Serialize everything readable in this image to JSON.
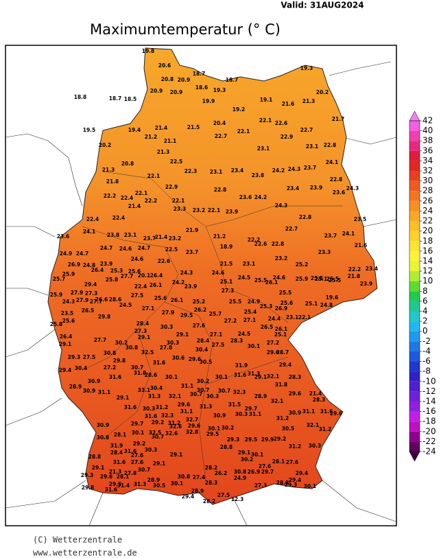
{
  "header": {
    "valid": "Valid:  31AUG2024",
    "title": "Maximumtemperatur (° C)"
  },
  "footer": {
    "copyright": "(C) Wetterzentrale",
    "url": "www.wetterzentrale.de"
  },
  "colorbar": {
    "ticks": [
      42,
      40,
      38,
      36,
      34,
      32,
      30,
      28,
      26,
      24,
      22,
      20,
      18,
      16,
      14,
      12,
      10,
      8,
      6,
      4,
      2,
      0,
      -2,
      -4,
      -6,
      -8,
      -10,
      -12,
      -14,
      -16,
      -18,
      -20,
      -22,
      -24
    ],
    "colors": [
      "#f080f0",
      "#f060e0",
      "#f040b0",
      "#e82880",
      "#e01c3c",
      "#e02820",
      "#e8401e",
      "#ee5c20",
      "#f27622",
      "#f69024",
      "#f8a826",
      "#fabe28",
      "#fcd22c",
      "#fee432",
      "#fef436",
      "#e8f434",
      "#b0ec30",
      "#60dc30",
      "#20cc50",
      "#20c890",
      "#20c8c8",
      "#20b8f0",
      "#2098f0",
      "#2078e8",
      "#2058e0",
      "#2038d0",
      "#3020c8",
      "#5020d0",
      "#7020d8",
      "#9020e0",
      "#c020e8",
      "#c010c0",
      "#900090",
      "#600060",
      "#400040"
    ]
  },
  "stations": [
    19.8,
    20.6,
    18.7,
    20.8,
    20.9,
    18.6,
    19.3,
    18.7,
    18.8,
    18.7,
    18.5,
    20.9,
    20.9,
    19.9,
    19.2,
    19.1,
    21.6,
    21.3,
    20.2,
    19.3,
    21.7,
    19.5,
    19.4,
    21.4,
    21.5,
    20.4,
    22.1,
    22.1,
    22.6,
    22.7,
    20.2,
    21.2,
    21.1,
    22.7,
    23.1,
    22.9,
    23.1,
    22.8,
    21.3,
    20.8,
    21.3,
    22.5,
    22.3,
    23.1,
    23.4,
    23.8,
    24.2,
    24.3,
    23.7,
    24.1,
    21.8,
    22.1,
    22.9,
    22.8,
    23.6,
    24.2,
    23.4,
    23.9,
    22.8,
    24.3,
    22.2,
    22.4,
    22.1,
    22.2,
    22.1,
    23.6,
    22.4,
    22.4,
    21.4,
    23.3,
    23.2,
    22.1,
    23.9,
    24.3,
    22.8,
    23.5,
    23.6,
    24.1,
    23.8,
    23.1,
    23.7,
    21.4,
    23.2,
    21.9,
    21.2,
    22.2,
    22.8,
    22.7,
    23.7,
    24.1,
    24.9,
    24.7,
    24.7,
    24.6,
    24.7,
    22.5,
    23.7,
    18.9,
    22.6,
    23.2,
    23.3,
    21.6,
    26.9,
    24.8,
    23.9,
    24.6,
    22.6,
    21.5,
    23.1,
    25.2,
    22.2,
    23.4,
    25.9,
    26.4,
    25.3,
    25.6,
    26.4,
    24.3,
    24.6,
    24.5,
    25.5,
    24.6,
    25.1,
    25.5,
    21.8,
    25.7,
    29.4,
    25.8,
    27.7,
    20.1,
    24.2,
    25.1,
    26.1,
    25.9,
    25.5,
    25.5,
    23.9,
    25.9,
    27.9,
    27.3,
    26.6,
    28.6,
    22.4,
    26.1,
    23.9,
    27.3,
    25.5,
    19.6,
    24.3,
    27.9,
    27.7,
    27.5,
    25.6,
    26.1,
    25.2,
    25.5,
    24.9,
    25.3,
    25.6,
    25.1,
    24.8,
    23.5,
    26.5,
    29.8,
    24.5,
    27.1,
    27.9,
    26.2,
    25.7,
    25.4,
    26.9,
    25.6,
    28.4,
    29.5,
    27.2,
    27.1,
    24.4,
    23.1,
    22.1,
    25.8,
    30.3,
    27.6,
    26.5,
    26.1,
    27.3,
    29.1,
    27.1,
    24.5,
    26.4,
    27.7,
    30.2,
    29.1,
    30.3,
    28.4,
    27.5,
    28.3,
    27.2,
    25.1,
    29.1,
    30.8,
    30.8,
    27.8,
    30.4,
    30.1,
    29.6,
    28.7,
    29.3,
    27.5,
    29.8,
    32.5,
    30.6,
    29.6,
    30.5,
    31.9,
    29.4,
    29.4,
    30.4,
    27.2,
    30.7,
    31.6,
    30.1,
    31.6,
    29.1,
    28.3,
    28.9,
    30.9,
    31.6,
    31.8,
    28.6,
    30.2,
    30.1,
    31.3,
    32.1,
    31.8,
    30.9,
    31.1,
    33.1,
    30.4,
    31.1,
    30.7,
    30.7,
    32.3,
    28.9,
    29.6,
    21.4,
    29.1,
    31.3,
    32.1,
    30.7,
    30.3,
    28.3,
    31.6,
    30.3,
    31.2,
    29.6,
    31.3,
    31.5,
    29.7,
    32.1,
    31.6,
    32.3,
    31.1,
    30.3,
    31.1,
    30.9,
    31.1,
    31.6,
    29.6,
    30.9,
    29.7,
    29.2,
    31.2,
    32.7,
    30.9,
    31.2,
    32.1,
    28.1,
    30.1,
    32.5,
    32.6,
    29.6,
    30.1,
    30.2,
    30.5,
    31.2,
    30.8,
    32.6,
    29.5,
    29.3,
    29.5,
    29.9,
    29.2,
    31.9,
    29.2,
    30.7,
    32.8,
    28.4,
    31.6,
    27.6,
    30.3,
    29.1,
    28.8,
    29.1,
    31.2,
    30.3,
    28.8,
    31.6,
    27.6,
    29.1,
    30.1,
    29.1,
    21.3,
    27.8,
    30.7,
    28.2,
    30.8,
    26.9,
    29.7,
    28.1,
    27.6,
    29.4,
    29.6,
    28.1,
    28.9,
    30.8,
    27.4,
    26.2,
    27.6,
    29.3,
    24.9,
    30.2,
    28.8,
    29.4,
    29.5,
    31.3,
    30.5,
    30.1,
    28.3,
    27.3,
    30.1,
    29.8,
    31.4,
    28.9,
    29.4,
    27.5,
    12.3,
    31.6,
    29.3,
    28.2
  ]
}
